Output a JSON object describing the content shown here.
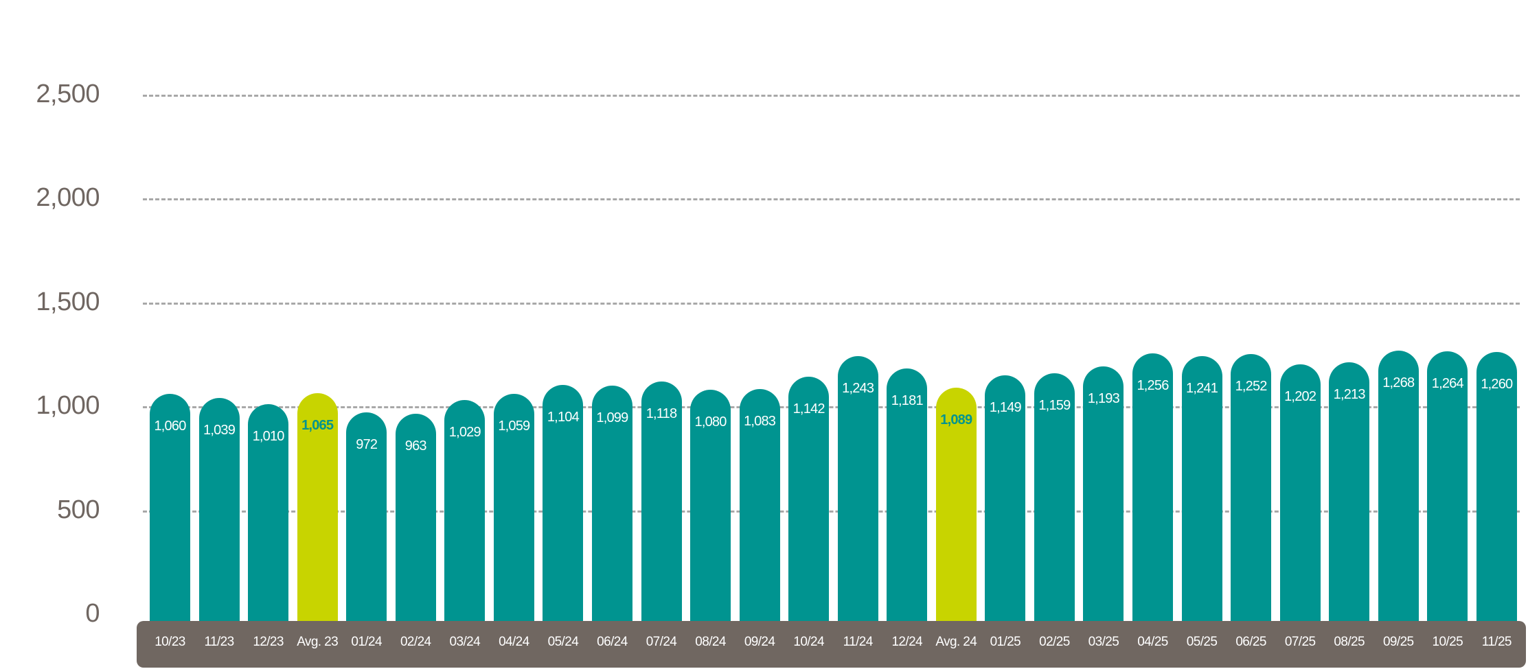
{
  "chart_data": {
    "type": "bar",
    "title": "",
    "xlabel": "",
    "ylabel": "",
    "ylim": [
      0,
      2500
    ],
    "yticks": [
      0,
      500,
      1000,
      1500,
      2000,
      2500
    ],
    "ytick_labels": [
      "0",
      "500",
      "1,000",
      "1,500",
      "2,000",
      "2,500"
    ],
    "grid": true,
    "grid_style": "dashed horizontal",
    "legend": null,
    "colors": {
      "bar": "#009490",
      "average_bar": "#c8d400",
      "average_label": "#009490",
      "bar_label": "#ffffff",
      "axis_band": "#706761",
      "axis_text": "#6f6661",
      "gridline": "#a8a8a8"
    },
    "categories": [
      "10/23",
      "11/23",
      "12/23",
      "Avg. 23",
      "01/24",
      "02/24",
      "03/24",
      "04/24",
      "05/24",
      "06/24",
      "07/24",
      "08/24",
      "09/24",
      "10/24",
      "11/24",
      "12/24",
      "Avg. 24",
      "01/25",
      "02/25",
      "03/25",
      "04/25",
      "05/25",
      "06/25",
      "07/25",
      "08/25",
      "09/25",
      "10/25",
      "11/25"
    ],
    "values": [
      1060,
      1039,
      1010,
      1065,
      972,
      963,
      1029,
      1059,
      1104,
      1099,
      1118,
      1080,
      1083,
      1142,
      1243,
      1181,
      1089,
      1149,
      1159,
      1193,
      1256,
      1241,
      1252,
      1202,
      1213,
      1268,
      1264,
      1260
    ],
    "value_labels": [
      "1,060",
      "1,039",
      "1,010",
      "1,065",
      "972",
      "963",
      "1,029",
      "1,059",
      "1,104",
      "1,099",
      "1,118",
      "1,080",
      "1,083",
      "1,142",
      "1,243",
      "1,181",
      "1,089",
      "1,149",
      "1,159",
      "1,193",
      "1,256",
      "1,241",
      "1,252",
      "1,202",
      "1,213",
      "1,268",
      "1,264",
      "1,260"
    ],
    "highlighted": [
      "Avg. 23",
      "Avg. 24"
    ]
  }
}
